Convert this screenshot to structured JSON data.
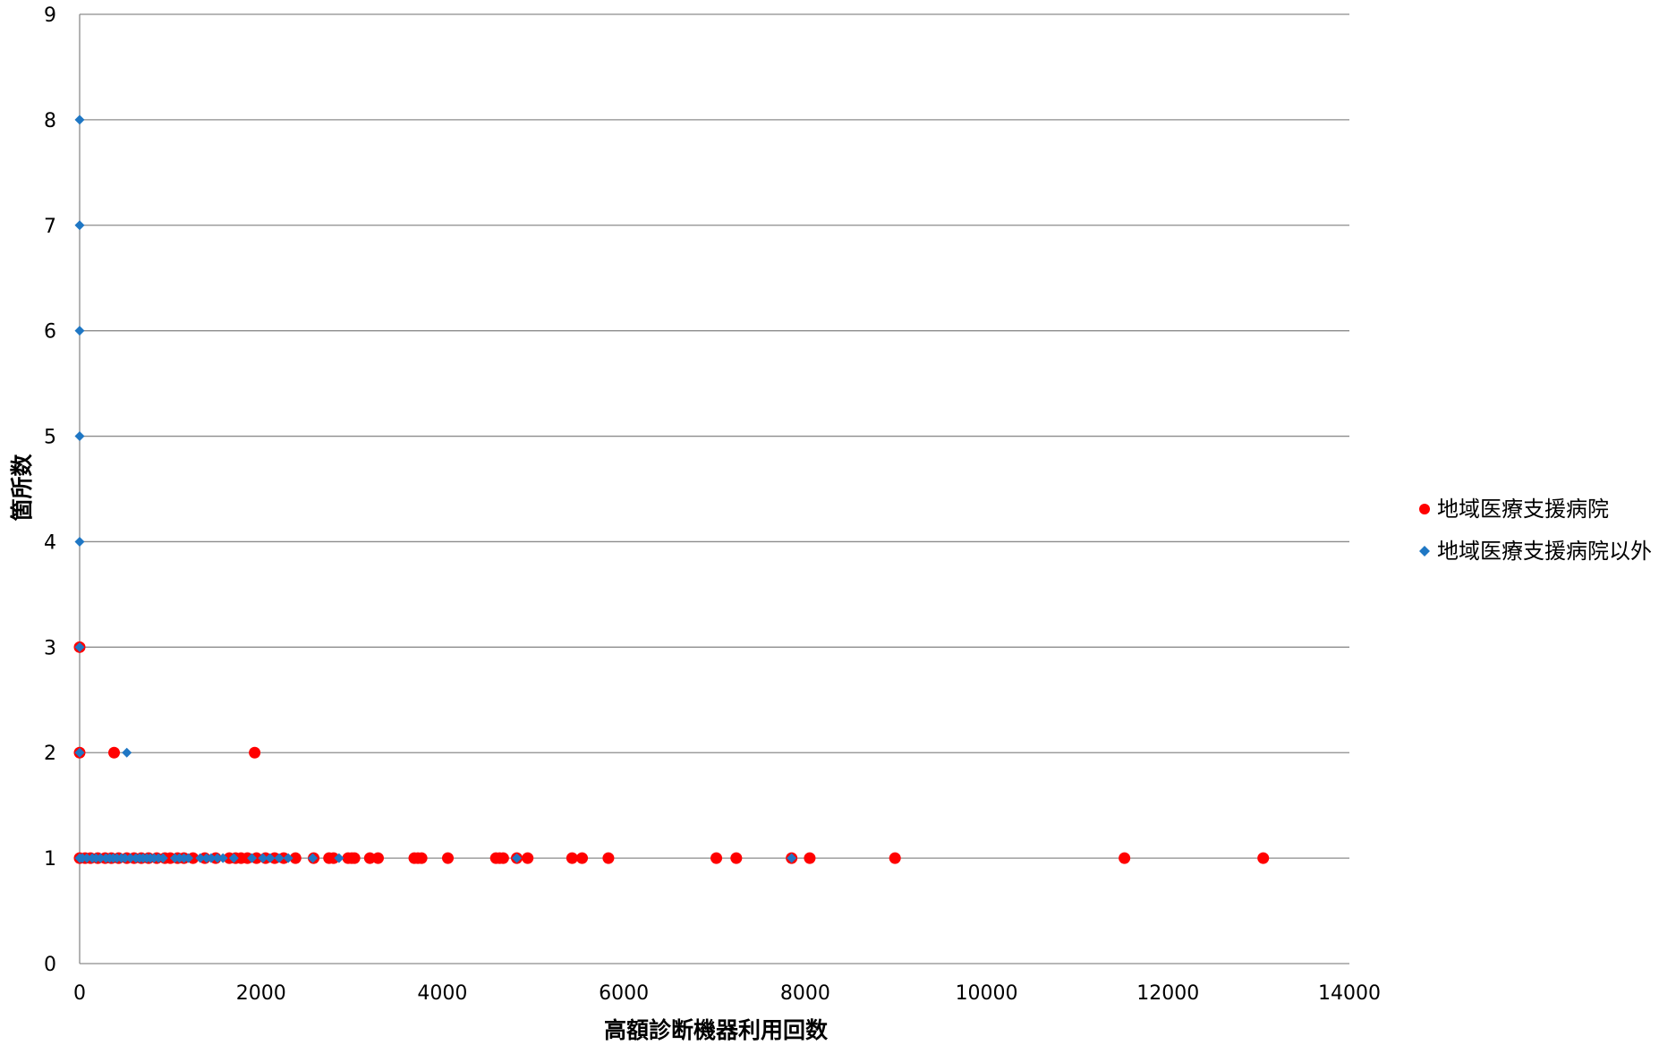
{
  "chart_data": {
    "type": "scatter",
    "title": "",
    "xlabel": "高額診断機器利用回数",
    "ylabel": "箇所数",
    "xlim": [
      0,
      14000
    ],
    "ylim": [
      0,
      9
    ],
    "x_ticks": [
      "0",
      "2000",
      "4000",
      "6000",
      "8000",
      "10000",
      "12000",
      "14000"
    ],
    "y_ticks": [
      "0",
      "1",
      "2",
      "3",
      "4",
      "5",
      "6",
      "7",
      "8",
      "9"
    ],
    "grid": "horizontal",
    "legend_position": "right",
    "series": [
      {
        "name": "地域医療支援病院",
        "marker": "circle",
        "color": "#ff0000",
        "points": [
          [
            0,
            3
          ],
          [
            0,
            2
          ],
          [
            380,
            2
          ],
          [
            1930,
            2
          ],
          [
            0,
            1
          ],
          [
            60,
            1
          ],
          [
            120,
            1
          ],
          [
            200,
            1
          ],
          [
            280,
            1
          ],
          [
            350,
            1
          ],
          [
            430,
            1
          ],
          [
            520,
            1
          ],
          [
            600,
            1
          ],
          [
            680,
            1
          ],
          [
            760,
            1
          ],
          [
            850,
            1
          ],
          [
            940,
            1
          ],
          [
            1000,
            1
          ],
          [
            1080,
            1
          ],
          [
            1150,
            1
          ],
          [
            1250,
            1
          ],
          [
            1380,
            1
          ],
          [
            1500,
            1
          ],
          [
            1650,
            1
          ],
          [
            1720,
            1
          ],
          [
            1780,
            1
          ],
          [
            1850,
            1
          ],
          [
            1950,
            1
          ],
          [
            2050,
            1
          ],
          [
            2150,
            1
          ],
          [
            2250,
            1
          ],
          [
            2380,
            1
          ],
          [
            2580,
            1
          ],
          [
            2750,
            1
          ],
          [
            2800,
            1
          ],
          [
            2960,
            1
          ],
          [
            3000,
            1
          ],
          [
            3030,
            1
          ],
          [
            3200,
            1
          ],
          [
            3290,
            1
          ],
          [
            3690,
            1
          ],
          [
            3730,
            1
          ],
          [
            3770,
            1
          ],
          [
            4060,
            1
          ],
          [
            4590,
            1
          ],
          [
            4630,
            1
          ],
          [
            4670,
            1
          ],
          [
            4820,
            1
          ],
          [
            4940,
            1
          ],
          [
            5430,
            1
          ],
          [
            5540,
            1
          ],
          [
            5830,
            1
          ],
          [
            7020,
            1
          ],
          [
            7240,
            1
          ],
          [
            7850,
            1
          ],
          [
            8050,
            1
          ],
          [
            8990,
            1
          ],
          [
            11520,
            1
          ],
          [
            13050,
            1
          ]
        ]
      },
      {
        "name": "地域医療支援病院以外",
        "marker": "diamond",
        "color": "#1f77c4",
        "points": [
          [
            0,
            8
          ],
          [
            0,
            7
          ],
          [
            0,
            6
          ],
          [
            0,
            5
          ],
          [
            0,
            4
          ],
          [
            0,
            3
          ],
          [
            0,
            2
          ],
          [
            520,
            2
          ],
          [
            0,
            1
          ],
          [
            30,
            1
          ],
          [
            80,
            1
          ],
          [
            140,
            1
          ],
          [
            180,
            1
          ],
          [
            230,
            1
          ],
          [
            290,
            1
          ],
          [
            330,
            1
          ],
          [
            370,
            1
          ],
          [
            410,
            1
          ],
          [
            460,
            1
          ],
          [
            500,
            1
          ],
          [
            560,
            1
          ],
          [
            620,
            1
          ],
          [
            660,
            1
          ],
          [
            700,
            1
          ],
          [
            740,
            1
          ],
          [
            780,
            1
          ],
          [
            820,
            1
          ],
          [
            870,
            1
          ],
          [
            920,
            1
          ],
          [
            1050,
            1
          ],
          [
            1100,
            1
          ],
          [
            1150,
            1
          ],
          [
            1200,
            1
          ],
          [
            1330,
            1
          ],
          [
            1400,
            1
          ],
          [
            1450,
            1
          ],
          [
            1520,
            1
          ],
          [
            1580,
            1
          ],
          [
            1700,
            1
          ],
          [
            1900,
            1
          ],
          [
            2020,
            1
          ],
          [
            2100,
            1
          ],
          [
            2200,
            1
          ],
          [
            2300,
            1
          ],
          [
            2570,
            1
          ],
          [
            2860,
            1
          ],
          [
            4820,
            1
          ],
          [
            7850,
            1
          ]
        ]
      }
    ]
  }
}
